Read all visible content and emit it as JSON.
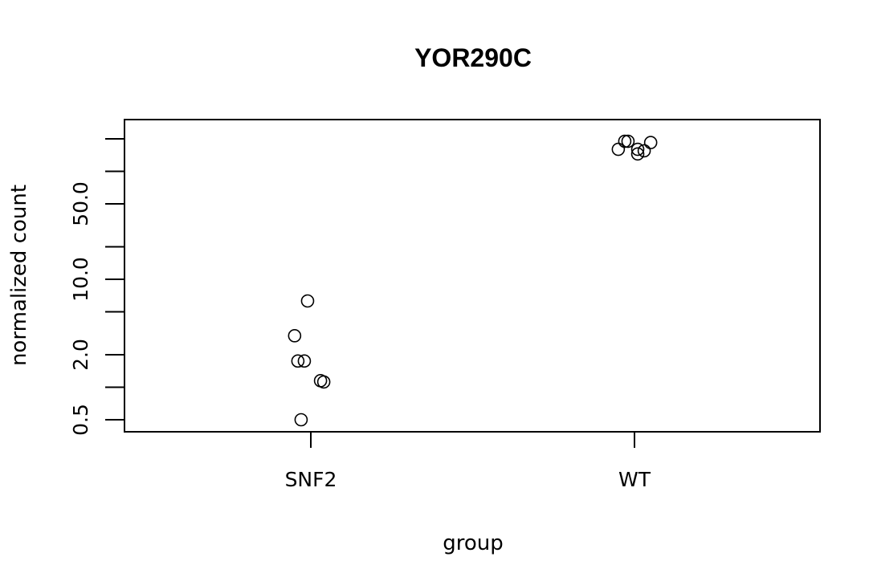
{
  "chart_data": {
    "type": "scatter",
    "title": "YOR290C",
    "xlabel": "group",
    "ylabel": "normalized count",
    "categories": [
      "SNF2",
      "WT"
    ],
    "y_scale": "log",
    "ylim": [
      0.43,
      260
    ],
    "y_tick_labels": [
      "0.5",
      "2.0",
      "10.0",
      "50.0"
    ],
    "y_tick_values": [
      0.5,
      1,
      2,
      5,
      10,
      20,
      50,
      100,
      200
    ],
    "grid": false,
    "legend": "none",
    "series": [
      {
        "category": "SNF2",
        "points": [
          {
            "jitter": -0.01,
            "value": 6.3
          },
          {
            "jitter": -0.05,
            "value": 3.0
          },
          {
            "jitter": -0.04,
            "value": 1.75
          },
          {
            "jitter": -0.02,
            "value": 1.75
          },
          {
            "jitter": 0.03,
            "value": 1.15
          },
          {
            "jitter": 0.04,
            "value": 1.12
          },
          {
            "jitter": -0.03,
            "value": 0.5
          }
        ]
      },
      {
        "category": "WT",
        "points": [
          {
            "jitter": -0.03,
            "value": 190
          },
          {
            "jitter": -0.02,
            "value": 190
          },
          {
            "jitter": 0.05,
            "value": 185
          },
          {
            "jitter": -0.05,
            "value": 160
          },
          {
            "jitter": 0.01,
            "value": 160
          },
          {
            "jitter": 0.03,
            "value": 155
          },
          {
            "jitter": 0.01,
            "value": 145
          }
        ]
      }
    ]
  }
}
